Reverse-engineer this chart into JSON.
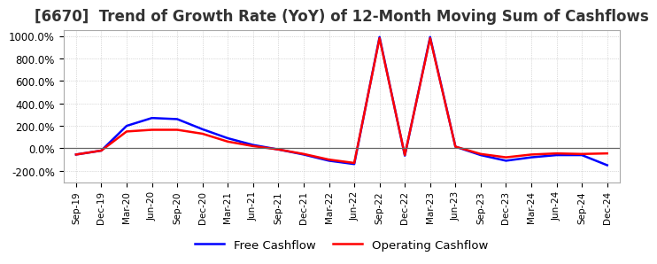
{
  "title": "[6670]  Trend of Growth Rate (YoY) of 12-Month Moving Sum of Cashflows",
  "title_fontsize": 12,
  "ylim": [
    -300,
    1050
  ],
  "yticks": [
    -200,
    0,
    200,
    400,
    600,
    800,
    1000
  ],
  "yticklabels": [
    "-200.0%",
    "0.0%",
    "200.0%",
    "400.0%",
    "600.0%",
    "800.0%",
    "1000.0%"
  ],
  "background_color": "#ffffff",
  "grid_color": "#bbbbbb",
  "operating_color": "#ff0000",
  "free_color": "#0000ff",
  "legend_labels": [
    "Operating Cashflow",
    "Free Cashflow"
  ],
  "x_dates": [
    "Sep-19",
    "Dec-19",
    "Mar-20",
    "Jun-20",
    "Sep-20",
    "Dec-20",
    "Mar-21",
    "Jun-21",
    "Sep-21",
    "Dec-21",
    "Mar-22",
    "Jun-22",
    "Sep-22",
    "Dec-22",
    "Mar-23",
    "Jun-23",
    "Sep-23",
    "Dec-23",
    "Mar-24",
    "Jun-24",
    "Sep-24",
    "Dec-24"
  ],
  "operating_cashflow": [
    -55,
    -20,
    150,
    165,
    165,
    130,
    60,
    20,
    -10,
    -50,
    -100,
    -130,
    980,
    -60,
    980,
    15,
    -50,
    -80,
    -55,
    -45,
    -50,
    -45
  ],
  "free_cashflow": [
    -55,
    -20,
    200,
    270,
    260,
    170,
    90,
    30,
    -10,
    -55,
    -110,
    -140,
    990,
    -65,
    990,
    15,
    -60,
    -110,
    -80,
    -60,
    -60,
    -150
  ]
}
